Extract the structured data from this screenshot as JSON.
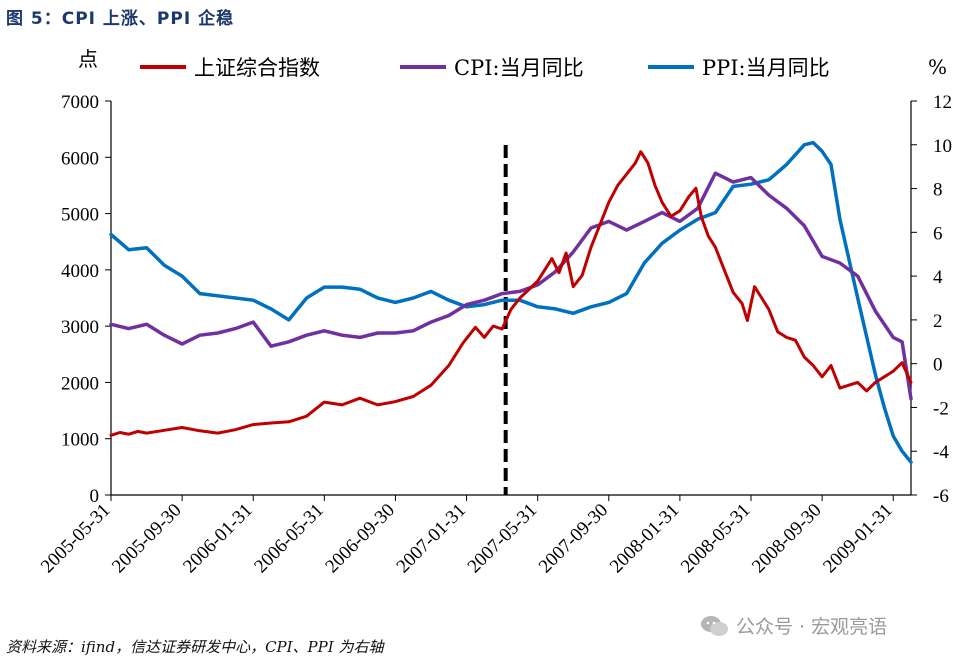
{
  "figure_title": "图 5：CPI 上涨、PPI 企稳",
  "source": "资料来源：ifind，信达证券研发中心，CPI、PPI 为右轴",
  "watermark": "公众号 · 宏观亮语",
  "chart_data": {
    "type": "line",
    "left_axis": {
      "unit": "点",
      "ylim": [
        0,
        7000
      ],
      "ticks": [
        "0",
        "1000",
        "2000",
        "3000",
        "4000",
        "5000",
        "6000",
        "7000"
      ]
    },
    "right_axis": {
      "unit": "%",
      "ylim": [
        -6,
        12
      ],
      "ticks": [
        "-6",
        "-4",
        "-2",
        "0",
        "2",
        "4",
        "6",
        "8",
        "10",
        "12"
      ]
    },
    "x_ticks": [
      "2005-05-31",
      "2005-09-30",
      "2006-01-31",
      "2006-05-31",
      "2006-09-30",
      "2007-01-31",
      "2007-05-31",
      "2007-09-30",
      "2008-01-31",
      "2008-05-31",
      "2008-09-30",
      "2009-01-31"
    ],
    "x_range_months": [
      0,
      45
    ],
    "marker": {
      "label": "dashed vertical line",
      "x_month": 22.2
    },
    "colors": {
      "index": "#c00000",
      "cpi": "#7030a0",
      "ppi": "#0070c0"
    },
    "series": [
      {
        "name": "上证综合指数",
        "axis": "left",
        "color": "#c00000",
        "points": [
          [
            0,
            1060
          ],
          [
            0.5,
            1110
          ],
          [
            1,
            1080
          ],
          [
            1.5,
            1130
          ],
          [
            2,
            1100
          ],
          [
            3,
            1150
          ],
          [
            4,
            1200
          ],
          [
            5,
            1140
          ],
          [
            6,
            1100
          ],
          [
            7,
            1160
          ],
          [
            8,
            1250
          ],
          [
            9,
            1280
          ],
          [
            10,
            1300
          ],
          [
            11,
            1400
          ],
          [
            12,
            1650
          ],
          [
            13,
            1600
          ],
          [
            14,
            1720
          ],
          [
            15,
            1600
          ],
          [
            16,
            1660
          ],
          [
            17,
            1750
          ],
          [
            18,
            1950
          ],
          [
            19,
            2300
          ],
          [
            19.8,
            2700
          ],
          [
            20.5,
            2980
          ],
          [
            21,
            2800
          ],
          [
            21.5,
            3000
          ],
          [
            22,
            2950
          ],
          [
            22.5,
            3300
          ],
          [
            23,
            3500
          ],
          [
            24,
            3800
          ],
          [
            24.8,
            4200
          ],
          [
            25.2,
            3950
          ],
          [
            25.6,
            4300
          ],
          [
            26,
            3700
          ],
          [
            26.5,
            3900
          ],
          [
            27,
            4400
          ],
          [
            27.5,
            4800
          ],
          [
            28,
            5200
          ],
          [
            28.5,
            5500
          ],
          [
            29,
            5700
          ],
          [
            29.5,
            5900
          ],
          [
            29.8,
            6100
          ],
          [
            30.2,
            5900
          ],
          [
            30.6,
            5500
          ],
          [
            31,
            5200
          ],
          [
            31.5,
            4950
          ],
          [
            32,
            5050
          ],
          [
            32.5,
            5300
          ],
          [
            32.9,
            5450
          ],
          [
            33.2,
            4950
          ],
          [
            33.6,
            4600
          ],
          [
            34,
            4400
          ],
          [
            34.5,
            4000
          ],
          [
            35,
            3600
          ],
          [
            35.5,
            3400
          ],
          [
            35.8,
            3100
          ],
          [
            36.2,
            3700
          ],
          [
            36.6,
            3500
          ],
          [
            37,
            3300
          ],
          [
            37.5,
            2900
          ],
          [
            38,
            2800
          ],
          [
            38.5,
            2750
          ],
          [
            39,
            2450
          ],
          [
            39.5,
            2300
          ],
          [
            40,
            2100
          ],
          [
            40.5,
            2300
          ],
          [
            41,
            1900
          ],
          [
            41.5,
            1950
          ],
          [
            42,
            2000
          ],
          [
            42.5,
            1850
          ],
          [
            43,
            2000
          ],
          [
            43.5,
            2100
          ],
          [
            44,
            2200
          ],
          [
            44.5,
            2350
          ],
          [
            45,
            2000
          ]
        ]
      },
      {
        "name": "CPI:当月同比",
        "axis": "right",
        "color": "#7030a0",
        "points": [
          [
            0,
            1.8
          ],
          [
            1,
            1.6
          ],
          [
            2,
            1.8
          ],
          [
            3,
            1.3
          ],
          [
            4,
            0.9
          ],
          [
            5,
            1.3
          ],
          [
            6,
            1.4
          ],
          [
            7,
            1.6
          ],
          [
            8,
            1.9
          ],
          [
            9,
            0.8
          ],
          [
            10,
            1.0
          ],
          [
            11,
            1.3
          ],
          [
            12,
            1.5
          ],
          [
            13,
            1.3
          ],
          [
            14,
            1.2
          ],
          [
            15,
            1.4
          ],
          [
            16,
            1.4
          ],
          [
            17,
            1.5
          ],
          [
            18,
            1.9
          ],
          [
            19,
            2.2
          ],
          [
            20,
            2.7
          ],
          [
            21,
            2.9
          ],
          [
            22,
            3.2
          ],
          [
            23,
            3.3
          ],
          [
            24,
            3.6
          ],
          [
            25,
            4.2
          ],
          [
            26,
            5.1
          ],
          [
            27,
            6.2
          ],
          [
            28,
            6.5
          ],
          [
            29,
            6.1
          ],
          [
            30,
            6.5
          ],
          [
            31,
            6.9
          ],
          [
            32,
            6.5
          ],
          [
            33,
            7.1
          ],
          [
            34,
            8.7
          ],
          [
            35,
            8.3
          ],
          [
            36,
            8.5
          ],
          [
            37,
            7.7
          ],
          [
            38,
            7.1
          ],
          [
            39,
            6.3
          ],
          [
            40,
            4.9
          ],
          [
            41,
            4.6
          ],
          [
            42,
            4.0
          ],
          [
            43,
            2.4
          ],
          [
            44,
            1.2
          ],
          [
            44.5,
            1.0
          ],
          [
            45,
            -1.6
          ]
        ]
      },
      {
        "name": "PPI:当月同比",
        "axis": "right",
        "color": "#0070c0",
        "points": [
          [
            0,
            5.9
          ],
          [
            1,
            5.2
          ],
          [
            2,
            5.3
          ],
          [
            3,
            4.5
          ],
          [
            4,
            4.0
          ],
          [
            5,
            3.2
          ],
          [
            6,
            3.1
          ],
          [
            7,
            3.0
          ],
          [
            8,
            2.9
          ],
          [
            9,
            2.5
          ],
          [
            10,
            2.0
          ],
          [
            11,
            3.0
          ],
          [
            12,
            3.5
          ],
          [
            13,
            3.5
          ],
          [
            14,
            3.4
          ],
          [
            15,
            3.0
          ],
          [
            16,
            2.8
          ],
          [
            17,
            3.0
          ],
          [
            18,
            3.3
          ],
          [
            19,
            2.9
          ],
          [
            20,
            2.6
          ],
          [
            21,
            2.7
          ],
          [
            22,
            2.9
          ],
          [
            23,
            2.9
          ],
          [
            24,
            2.6
          ],
          [
            25,
            2.5
          ],
          [
            26,
            2.3
          ],
          [
            27,
            2.6
          ],
          [
            28,
            2.8
          ],
          [
            29,
            3.2
          ],
          [
            30,
            4.6
          ],
          [
            31,
            5.5
          ],
          [
            32,
            6.1
          ],
          [
            33,
            6.6
          ],
          [
            34,
            6.9
          ],
          [
            35,
            8.1
          ],
          [
            36,
            8.2
          ],
          [
            37,
            8.4
          ],
          [
            38,
            9.1
          ],
          [
            39,
            10.0
          ],
          [
            39.5,
            10.1
          ],
          [
            40,
            9.7
          ],
          [
            40.5,
            9.1
          ],
          [
            41,
            6.6
          ],
          [
            42,
            3.0
          ],
          [
            43,
            -0.5
          ],
          [
            43.5,
            -2.0
          ],
          [
            44,
            -3.3
          ],
          [
            44.5,
            -4.0
          ],
          [
            45,
            -4.5
          ]
        ]
      }
    ]
  }
}
